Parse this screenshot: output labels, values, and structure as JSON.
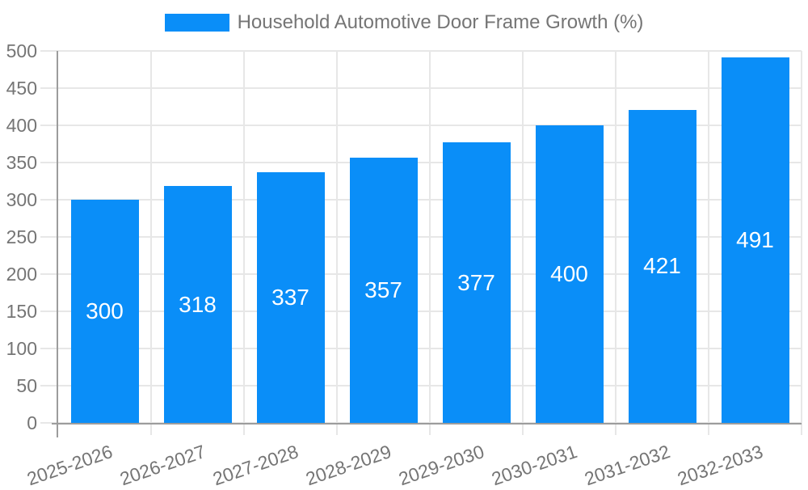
{
  "colors": {
    "bar": "#0a8ef8",
    "axis": "#9c9c9c",
    "grid": "#e7e7e7",
    "label": "#757575",
    "value_label": "#ffffff",
    "background": "#ffffff"
  },
  "chart_data": {
    "type": "bar",
    "title": "Household Automotive Door Frame Growth (%)",
    "categories": [
      "2025-2026",
      "2026-2027",
      "2027-2028",
      "2028-2029",
      "2029-2030",
      "2030-2031",
      "2031-2032",
      "2032-2033"
    ],
    "values": [
      300,
      318,
      337,
      357,
      377,
      400,
      421,
      491
    ],
    "xlabel": "",
    "ylabel": "",
    "ylim": [
      0,
      500
    ],
    "yticks": [
      0,
      50,
      100,
      150,
      200,
      250,
      300,
      350,
      400,
      450,
      500
    ],
    "grid": "horizontal-and-vertical",
    "legend_position": "top-center",
    "bar_label_style": "white-centered-inside-bar",
    "x_label_rotation_deg": -19
  }
}
